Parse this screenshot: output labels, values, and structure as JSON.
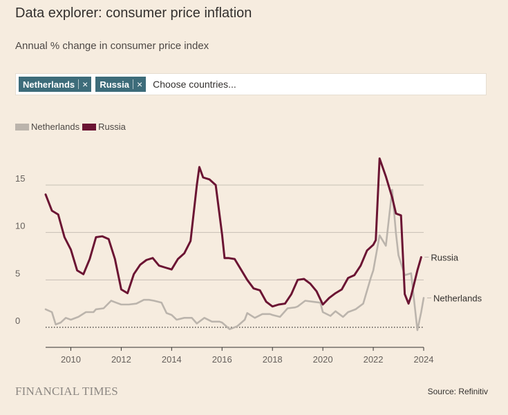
{
  "header": {
    "title": "Data explorer: consumer price inflation",
    "subtitle": "Annual % change in consumer price index"
  },
  "selector": {
    "chips": [
      {
        "label": "Netherlands",
        "remove": "×"
      },
      {
        "label": "Russia",
        "remove": "×"
      }
    ],
    "placeholder": "Choose countries..."
  },
  "colors": {
    "background": "#f6ecdf",
    "netherlands": "#bbb4ac",
    "russia": "#6b1433",
    "chip": "#3d6c7a",
    "grid": "#c7bfb5"
  },
  "footer": {
    "brand": "FINANCIAL TIMES",
    "source": "Source: Refinitiv"
  },
  "chart_data": {
    "type": "line",
    "title": "",
    "xlabel": "",
    "ylabel": "",
    "xlim": [
      2009.0,
      2024.0
    ],
    "ylim": [
      -1.5,
      18
    ],
    "xticks": [
      "2010",
      "2012",
      "2014",
      "2016",
      "2018",
      "2020",
      "2022",
      "2024"
    ],
    "yticks": [
      "0",
      "5",
      "10",
      "15"
    ],
    "grid": "horizontal",
    "zero_line": "dotted",
    "legend_position": "top-left",
    "series": [
      {
        "name": "Netherlands",
        "end_label": "Netherlands",
        "color": "#bbb4ac",
        "points": [
          [
            2009.0,
            1.9
          ],
          [
            2009.25,
            1.6
          ],
          [
            2009.4,
            0.3
          ],
          [
            2009.6,
            0.5
          ],
          [
            2009.8,
            1.0
          ],
          [
            2010.0,
            0.8
          ],
          [
            2010.3,
            1.1
          ],
          [
            2010.6,
            1.6
          ],
          [
            2010.9,
            1.6
          ],
          [
            2011.0,
            1.9
          ],
          [
            2011.3,
            2.0
          ],
          [
            2011.6,
            2.8
          ],
          [
            2011.8,
            2.6
          ],
          [
            2012.0,
            2.4
          ],
          [
            2012.3,
            2.4
          ],
          [
            2012.6,
            2.5
          ],
          [
            2012.9,
            2.9
          ],
          [
            2013.1,
            2.9
          ],
          [
            2013.3,
            2.8
          ],
          [
            2013.6,
            2.6
          ],
          [
            2013.8,
            1.5
          ],
          [
            2014.0,
            1.3
          ],
          [
            2014.2,
            0.8
          ],
          [
            2014.5,
            1.0
          ],
          [
            2014.8,
            1.0
          ],
          [
            2015.0,
            0.4
          ],
          [
            2015.3,
            1.0
          ],
          [
            2015.6,
            0.6
          ],
          [
            2015.9,
            0.6
          ],
          [
            2016.0,
            0.5
          ],
          [
            2016.3,
            -0.2
          ],
          [
            2016.6,
            0.1
          ],
          [
            2016.9,
            0.8
          ],
          [
            2017.0,
            1.5
          ],
          [
            2017.3,
            1.0
          ],
          [
            2017.6,
            1.4
          ],
          [
            2017.9,
            1.4
          ],
          [
            2018.0,
            1.3
          ],
          [
            2018.3,
            1.1
          ],
          [
            2018.6,
            2.0
          ],
          [
            2018.9,
            2.1
          ],
          [
            2019.0,
            2.2
          ],
          [
            2019.3,
            2.8
          ],
          [
            2019.6,
            2.7
          ],
          [
            2019.9,
            2.6
          ],
          [
            2020.0,
            1.6
          ],
          [
            2020.3,
            1.2
          ],
          [
            2020.5,
            1.7
          ],
          [
            2020.8,
            1.1
          ],
          [
            2021.0,
            1.6
          ],
          [
            2021.3,
            1.9
          ],
          [
            2021.6,
            2.5
          ],
          [
            2021.9,
            5.2
          ],
          [
            2022.0,
            6.0
          ],
          [
            2022.25,
            9.7
          ],
          [
            2022.5,
            8.6
          ],
          [
            2022.75,
            14.5
          ],
          [
            2022.9,
            9.9
          ],
          [
            2023.0,
            7.6
          ],
          [
            2023.25,
            5.5
          ],
          [
            2023.5,
            5.7
          ],
          [
            2023.75,
            -0.3
          ],
          [
            2023.9,
            1.6
          ],
          [
            2024.0,
            3.1
          ]
        ]
      },
      {
        "name": "Russia",
        "end_label": "Russia",
        "color": "#6b1433",
        "points": [
          [
            2009.0,
            14.0
          ],
          [
            2009.25,
            12.3
          ],
          [
            2009.5,
            11.9
          ],
          [
            2009.75,
            9.5
          ],
          [
            2010.0,
            8.2
          ],
          [
            2010.25,
            6.0
          ],
          [
            2010.5,
            5.6
          ],
          [
            2010.75,
            7.2
          ],
          [
            2011.0,
            9.5
          ],
          [
            2011.25,
            9.6
          ],
          [
            2011.5,
            9.3
          ],
          [
            2011.75,
            7.2
          ],
          [
            2012.0,
            4.0
          ],
          [
            2012.25,
            3.6
          ],
          [
            2012.5,
            5.6
          ],
          [
            2012.75,
            6.6
          ],
          [
            2013.0,
            7.1
          ],
          [
            2013.25,
            7.3
          ],
          [
            2013.5,
            6.5
          ],
          [
            2013.75,
            6.3
          ],
          [
            2014.0,
            6.1
          ],
          [
            2014.25,
            7.2
          ],
          [
            2014.5,
            7.8
          ],
          [
            2014.75,
            9.1
          ],
          [
            2015.0,
            15.0
          ],
          [
            2015.1,
            16.9
          ],
          [
            2015.25,
            15.8
          ],
          [
            2015.5,
            15.6
          ],
          [
            2015.75,
            15.0
          ],
          [
            2016.0,
            9.8
          ],
          [
            2016.1,
            7.3
          ],
          [
            2016.25,
            7.3
          ],
          [
            2016.5,
            7.2
          ],
          [
            2016.75,
            6.1
          ],
          [
            2017.0,
            5.0
          ],
          [
            2017.25,
            4.1
          ],
          [
            2017.5,
            3.9
          ],
          [
            2017.75,
            2.7
          ],
          [
            2018.0,
            2.2
          ],
          [
            2018.25,
            2.4
          ],
          [
            2018.5,
            2.5
          ],
          [
            2018.75,
            3.5
          ],
          [
            2019.0,
            5.0
          ],
          [
            2019.25,
            5.1
          ],
          [
            2019.5,
            4.6
          ],
          [
            2019.75,
            3.8
          ],
          [
            2020.0,
            2.4
          ],
          [
            2020.25,
            3.1
          ],
          [
            2020.5,
            3.6
          ],
          [
            2020.75,
            4.0
          ],
          [
            2021.0,
            5.2
          ],
          [
            2021.25,
            5.5
          ],
          [
            2021.5,
            6.5
          ],
          [
            2021.75,
            8.1
          ],
          [
            2022.0,
            8.7
          ],
          [
            2022.1,
            9.2
          ],
          [
            2022.25,
            17.8
          ],
          [
            2022.5,
            15.9
          ],
          [
            2022.75,
            13.7
          ],
          [
            2022.9,
            12.0
          ],
          [
            2023.0,
            11.9
          ],
          [
            2023.1,
            11.8
          ],
          [
            2023.25,
            3.5
          ],
          [
            2023.4,
            2.5
          ],
          [
            2023.5,
            3.3
          ],
          [
            2023.75,
            6.0
          ],
          [
            2023.9,
            7.4
          ]
        ]
      }
    ]
  }
}
